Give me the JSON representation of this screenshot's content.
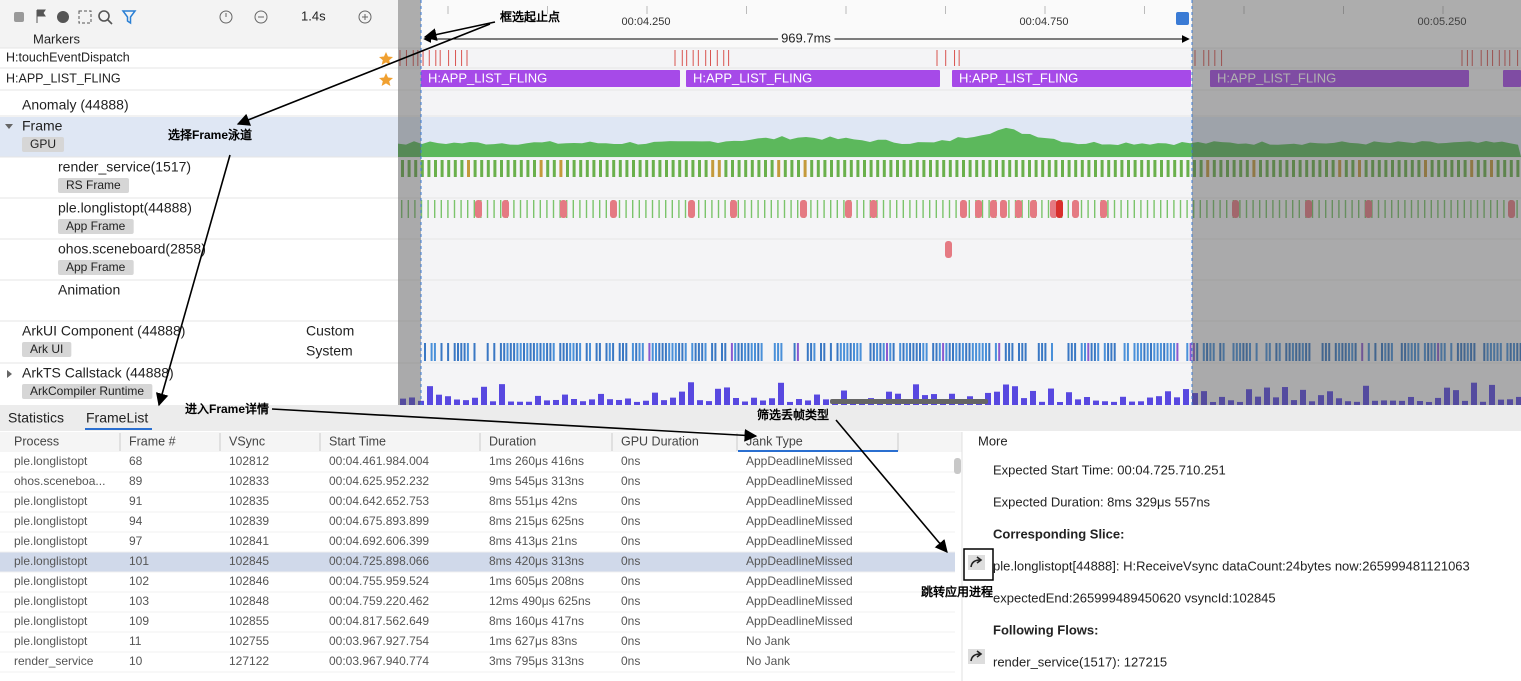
{
  "toolbar": {
    "zoom": "1.4s"
  },
  "markers_label": "Markers",
  "ruler": {
    "ticks": [
      "00:04.250",
      "00:04.750",
      "00:05.250"
    ],
    "selection": "969.7ms"
  },
  "lanes": [
    {
      "name": "H:touchEventDispatch"
    },
    {
      "name": "H:APP_LIST_FLING",
      "slices": [
        "H:APP_LIST_FLING",
        "H:APP_LIST_FLING",
        "H:APP_LIST_FLING",
        "H:APP_LIST_FLING"
      ]
    },
    {
      "name": "Anomaly (44888)"
    },
    {
      "name": "Frame",
      "tag": "GPU"
    },
    {
      "name": "render_service(1517)",
      "tag": "RS Frame"
    },
    {
      "name": "ple.longlistopt(44888)",
      "tag": "App Frame"
    },
    {
      "name": "ohos.sceneboard(2858)",
      "tag": "App Frame"
    },
    {
      "name": "Animation"
    },
    {
      "name": "ArkUI Component (44888)",
      "tag": "Ark UI",
      "types": [
        "Custom",
        "System"
      ]
    },
    {
      "name": "ArkTS Callstack (44888)",
      "tag": "ArkCompiler Runtime"
    }
  ],
  "annotations": [
    "框选起止点",
    "选择Frame泳道",
    "进入Frame详情",
    "筛选丢帧类型",
    "跳转应用进程"
  ],
  "tabs": [
    "Statistics",
    "FrameList"
  ],
  "table": {
    "columns": [
      "Process",
      "Frame #",
      "VSync",
      "Start Time",
      "Duration",
      "GPU Duration",
      "Jank Type"
    ],
    "rows": [
      [
        "ple.longlistopt",
        "68",
        "102812",
        "00:04.461.984.004",
        "1ms 260μs 416ns",
        "0ns",
        "AppDeadlineMissed"
      ],
      [
        "ohos.sceneboa...",
        "89",
        "102833",
        "00:04.625.952.232",
        "9ms 545μs 313ns",
        "0ns",
        "AppDeadlineMissed"
      ],
      [
        "ple.longlistopt",
        "91",
        "102835",
        "00:04.642.652.753",
        "8ms 551μs 42ns",
        "0ns",
        "AppDeadlineMissed"
      ],
      [
        "ple.longlistopt",
        "94",
        "102839",
        "00:04.675.893.899",
        "8ms 215μs 625ns",
        "0ns",
        "AppDeadlineMissed"
      ],
      [
        "ple.longlistopt",
        "97",
        "102841",
        "00:04.692.606.399",
        "8ms 413μs 21ns",
        "0ns",
        "AppDeadlineMissed"
      ],
      [
        "ple.longlistopt",
        "101",
        "102845",
        "00:04.725.898.066",
        "8ms 420μs 313ns",
        "0ns",
        "AppDeadlineMissed"
      ],
      [
        "ple.longlistopt",
        "102",
        "102846",
        "00:04.755.959.524",
        "1ms 605μs 208ns",
        "0ns",
        "AppDeadlineMissed"
      ],
      [
        "ple.longlistopt",
        "103",
        "102848",
        "00:04.759.220.462",
        "12ms 490μs 625ns",
        "0ns",
        "AppDeadlineMissed"
      ],
      [
        "ple.longlistopt",
        "109",
        "102855",
        "00:04.817.562.649",
        "8ms 160μs 417ns",
        "0ns",
        "AppDeadlineMissed"
      ],
      [
        "ple.longlistopt",
        "11",
        "102755",
        "00:03.967.927.754",
        "1ms 627μs 83ns",
        "0ns",
        "No Jank"
      ],
      [
        "render_service",
        "10",
        "127122",
        "00:03.967.940.774",
        "3ms 795μs 313ns",
        "0ns",
        "No Jank"
      ]
    ]
  },
  "details": {
    "title": "More",
    "expected_start": "Expected Start Time: 00:04.725.710.251",
    "expected_duration": "Expected Duration: 8ms 329μs 557ns",
    "slice_heading": "Corresponding Slice:",
    "slice": "ple.longlistopt[44888]: H:ReceiveVsync dataCount:24bytes now:265999481121063",
    "slice_extra": "expectedEnd:265999489450620 vsyncId:102845",
    "flows_heading": "Following Flows:",
    "flow": "render_service(1517): 127215"
  }
}
